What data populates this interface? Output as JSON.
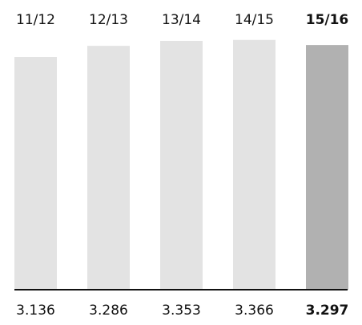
{
  "chart_data": {
    "type": "bar",
    "categories": [
      "11/12",
      "12/13",
      "13/14",
      "14/15",
      "15/16"
    ],
    "values": [
      3136,
      3286,
      3353,
      3366,
      3297
    ],
    "value_labels": [
      "3.136",
      "3.286",
      "3.353",
      "3.366",
      "3.297"
    ],
    "highlight_index": 4,
    "title": "",
    "xlabel": "",
    "ylabel": "",
    "ylim": [
      0,
      3570
    ],
    "grid": false,
    "legend": "none"
  },
  "colors": {
    "bar_default": "#e3e3e3",
    "bar_highlight": "#b1b1b1",
    "baseline": "#111111",
    "text": "#111111",
    "background": "#ffffff"
  }
}
